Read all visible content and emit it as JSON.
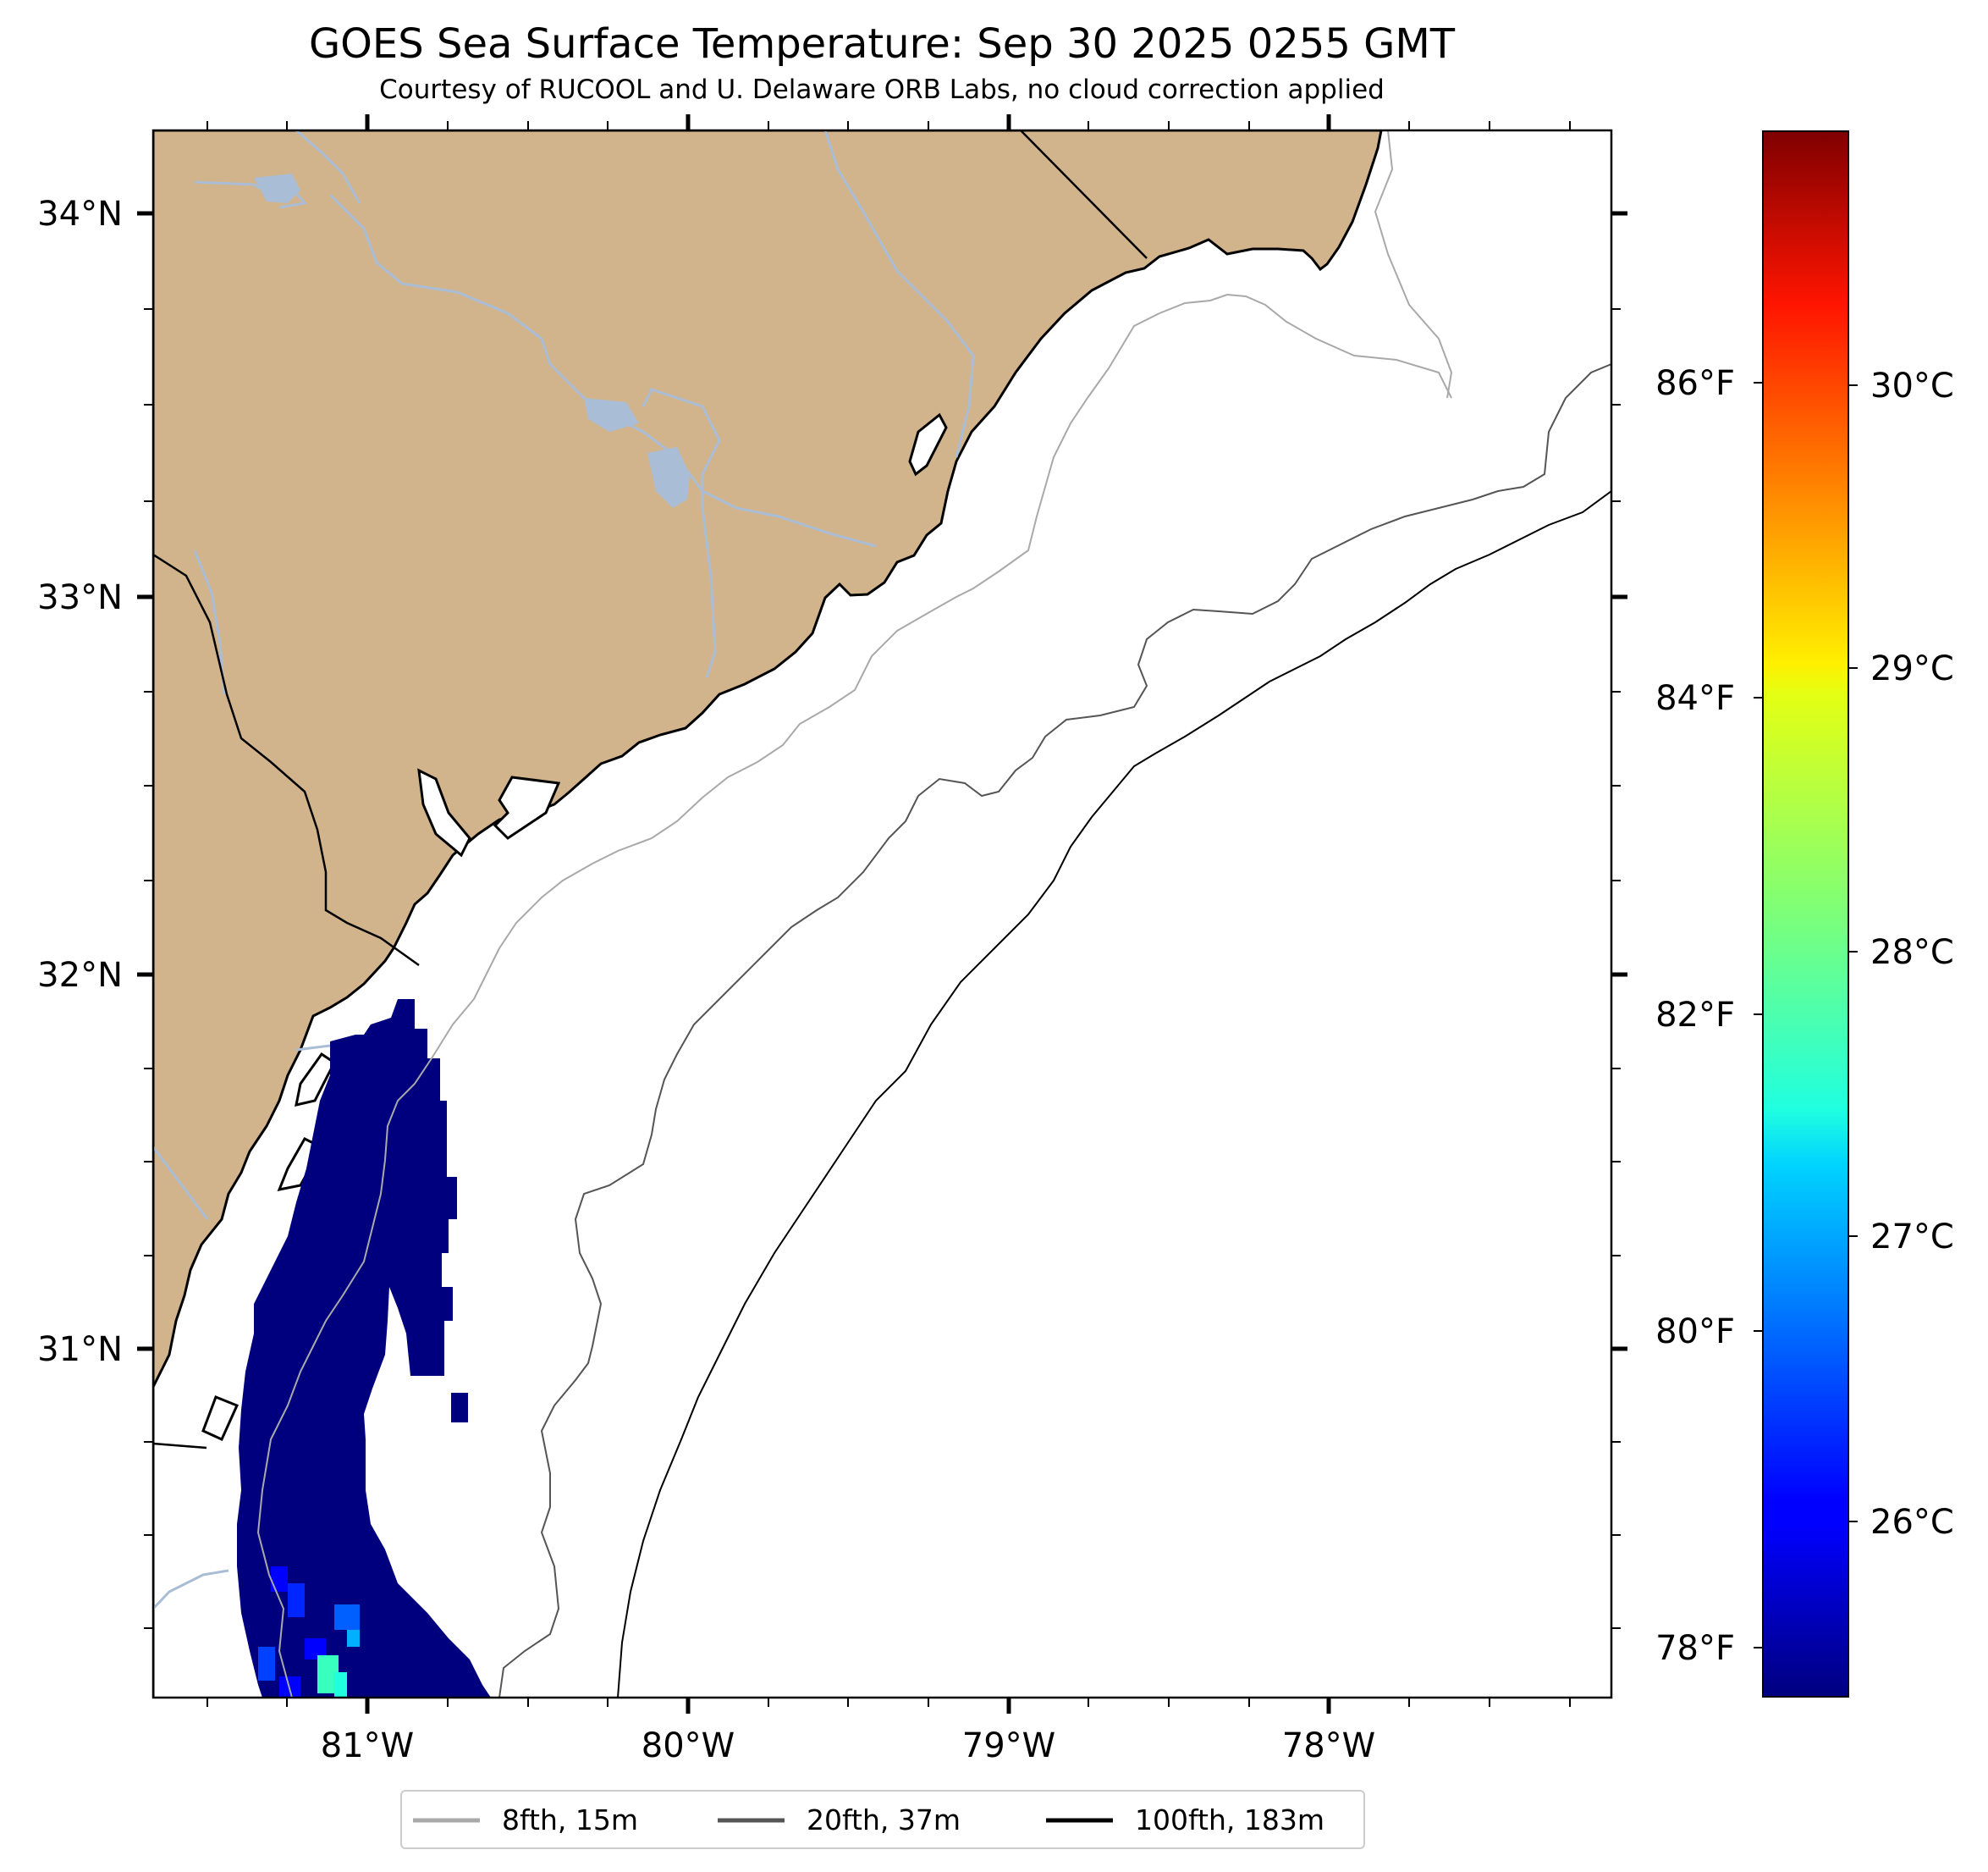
{
  "title": "GOES Sea Surface Temperature: Sep 30 2025 0255 GMT",
  "subtitle": "Courtesy of RUCOOL and U. Delaware ORB Labs, no cloud correction applied",
  "map": {
    "lon_range": [
      -81.67,
      -77.12
    ],
    "lat_range": [
      30.08,
      34.22
    ],
    "lon_ticks": [
      "81°W",
      "80°W",
      "79°W",
      "78°W"
    ],
    "lat_ticks": [
      "34°N",
      "33°N",
      "32°N",
      "31°N"
    ],
    "land_color": "#d2b48c",
    "river_color": "#a9bdd6",
    "no_data_color": "#ffffff",
    "sst_cold_color": "#00007f"
  },
  "colorbar": {
    "colormap": "jet",
    "celsius_ticks": [
      "30°C",
      "29°C",
      "28°C",
      "27°C",
      "26°C"
    ],
    "fahrenheit_ticks": [
      "86°F",
      "84°F",
      "82°F",
      "80°F",
      "78°F"
    ]
  },
  "legend": {
    "placement": "bottom-center",
    "items": [
      {
        "label": "8fth, 15m",
        "color": "#a9a9a9"
      },
      {
        "label": "20fth, 37m",
        "color": "#555555"
      },
      {
        "label": "100fth, 183m",
        "color": "#000000"
      }
    ]
  }
}
